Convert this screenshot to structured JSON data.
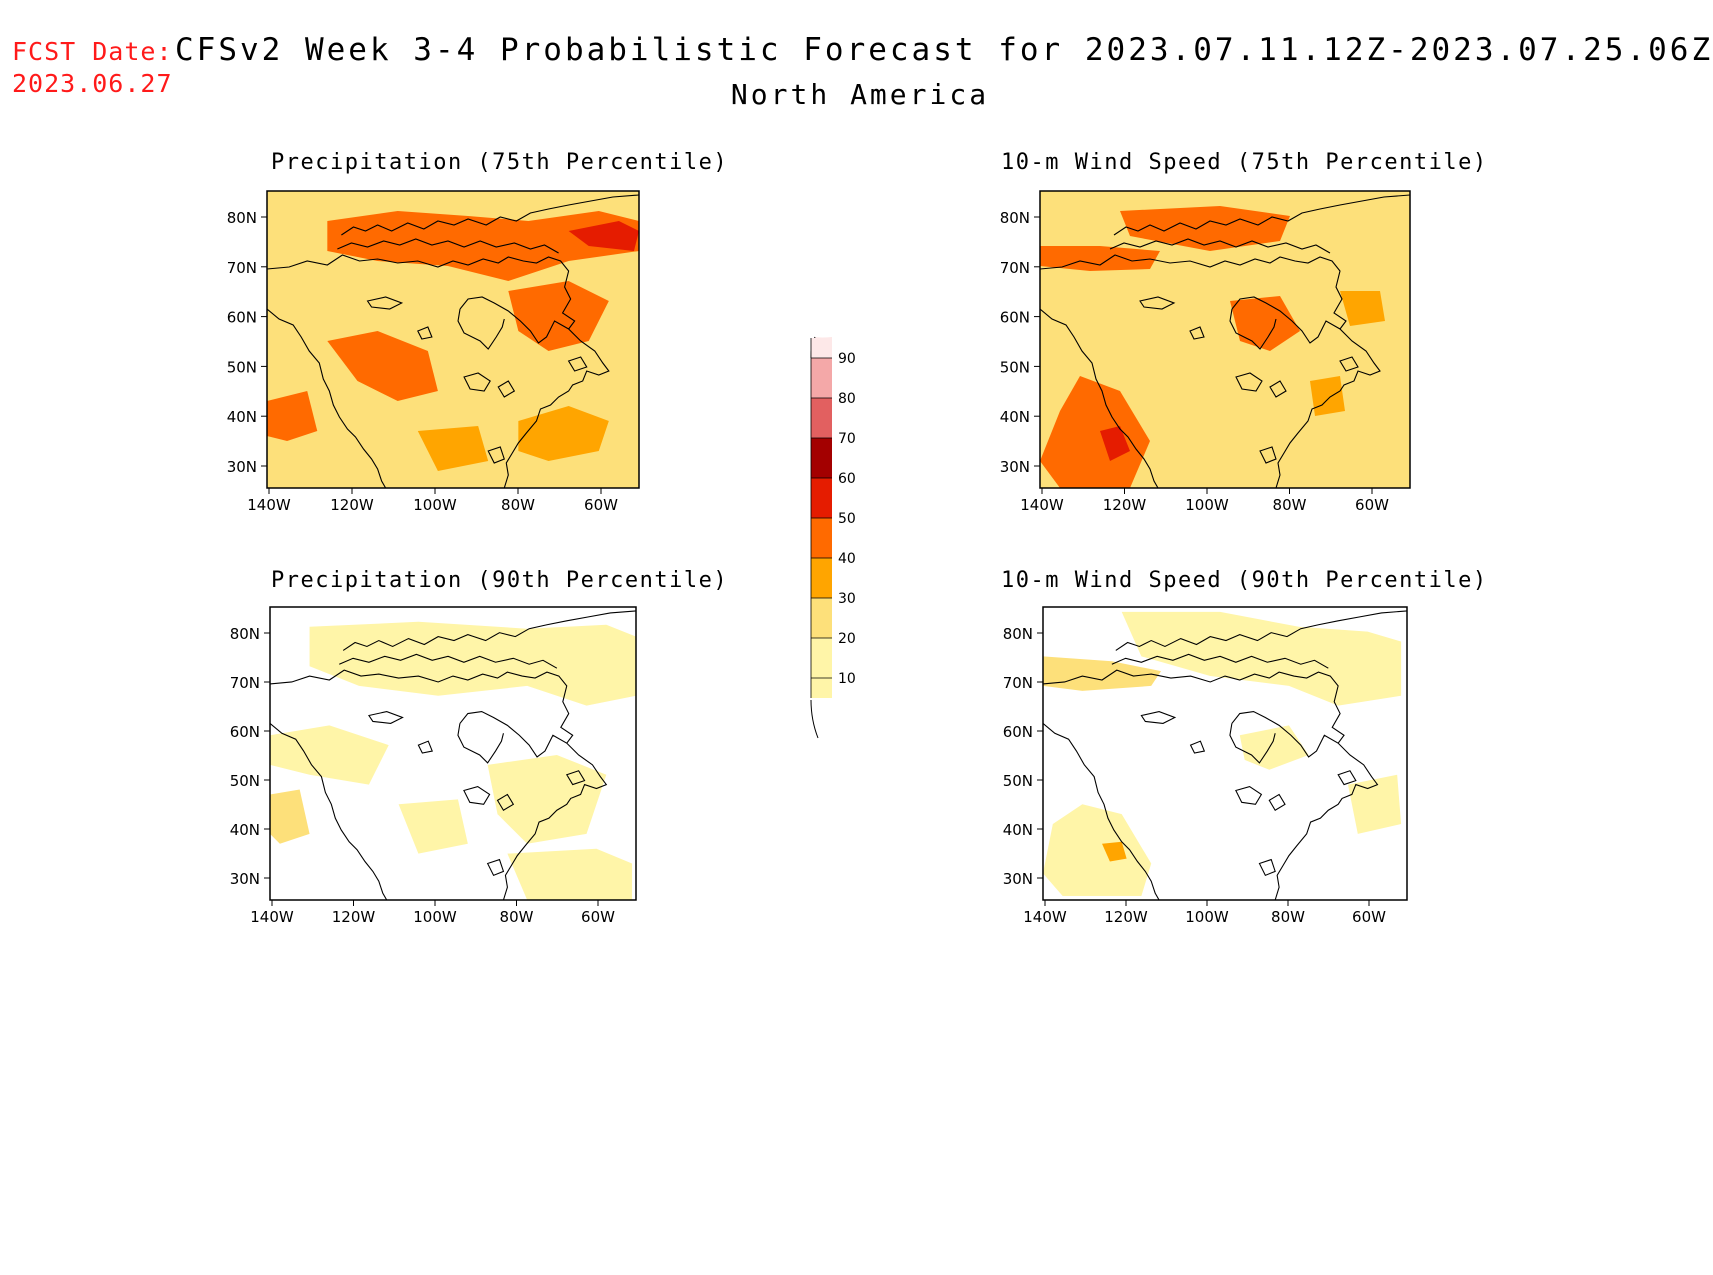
{
  "header": {
    "fcst_label": "FCST Date:",
    "fcst_date": "2023.06.27",
    "title": "CFSv2 Week 3-4 Probabilistic Forecast for 2023.07.11.12Z-2023.07.25.06Z",
    "region": "North America"
  },
  "panels": [
    {
      "title": "Precipitation (75th Percentile)",
      "intensity": "high"
    },
    {
      "title": "10-m Wind Speed (75th Percentile)",
      "intensity": "high"
    },
    {
      "title": "Precipitation (90th Percentile)",
      "intensity": "low"
    },
    {
      "title": "10-m Wind Speed (90th Percentile)",
      "intensity": "low"
    }
  ],
  "axes": {
    "lat_labels": [
      "80N",
      "70N",
      "60N",
      "50N",
      "40N",
      "30N"
    ],
    "lon_labels": [
      "140W",
      "120W",
      "100W",
      "80W",
      "60W"
    ]
  },
  "colorbar": {
    "levels": [
      "10",
      "20",
      "30",
      "40",
      "50",
      "60",
      "70",
      "80",
      "90"
    ],
    "colors": [
      "#fff5a8",
      "#fde07a",
      "#ffa500",
      "#ff6a00",
      "#e51c00",
      "#a30000",
      "#e26060",
      "#f4a8a8",
      "#fde8e8"
    ]
  }
}
